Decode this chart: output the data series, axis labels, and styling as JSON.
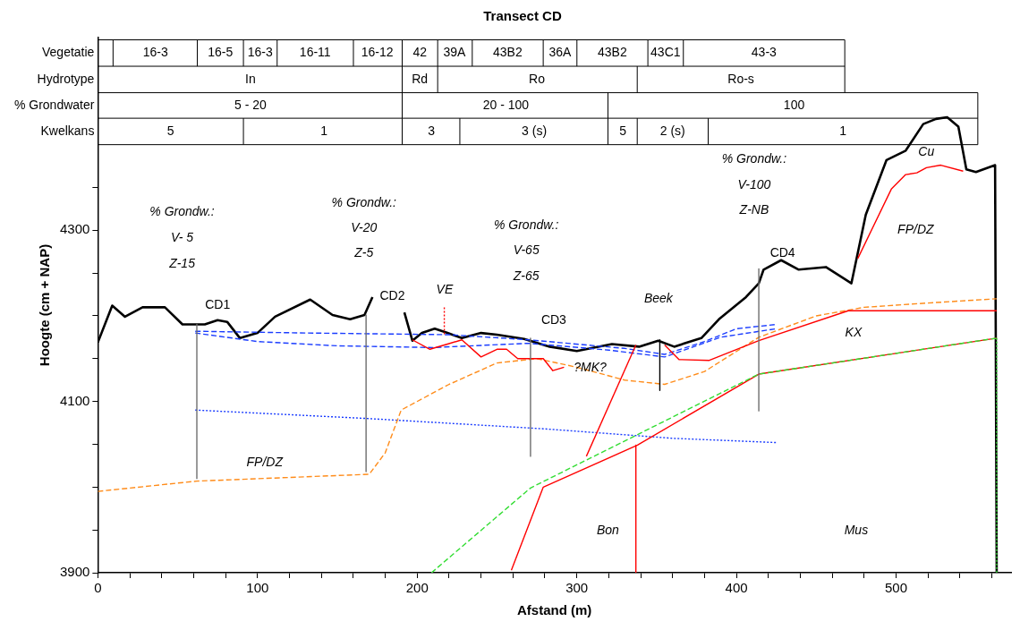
{
  "chart_data": {
    "type": "line",
    "title": "Transect CD",
    "xlabel": "Afstand (m)",
    "ylabel": "Hoogte (cm + NAP)",
    "xlim": [
      0,
      572
    ],
    "ylim": [
      3900,
      4525
    ],
    "xticks": [
      0,
      {
        "value": 20,
        "label": null
      },
      {
        "value": 40,
        "label": null
      },
      {
        "value": 60,
        "label": null
      },
      {
        "value": 80,
        "label": null
      },
      100,
      {
        "value": 120,
        "label": null
      },
      {
        "value": 140,
        "label": null
      },
      {
        "value": 160,
        "label": null
      },
      {
        "value": 180,
        "label": null
      },
      200,
      {
        "value": 220,
        "label": null
      },
      {
        "value": 240,
        "label": null
      },
      {
        "value": 260,
        "label": null
      },
      {
        "value": 280,
        "label": null
      },
      300,
      {
        "value": 320,
        "label": null
      },
      {
        "value": 340,
        "label": null
      },
      {
        "value": 360,
        "label": null
      },
      {
        "value": 380,
        "label": null
      },
      400,
      {
        "value": 420,
        "label": null
      },
      {
        "value": 440,
        "label": null
      },
      {
        "value": 460,
        "label": null
      },
      {
        "value": 480,
        "label": null
      },
      500,
      {
        "value": 520,
        "label": null
      },
      {
        "value": 540,
        "label": null
      },
      {
        "value": 560,
        "label": null
      }
    ],
    "yticks": [
      3900,
      {
        "value": 3950,
        "label": null
      },
      {
        "value": 4000,
        "label": null
      },
      {
        "value": 4050,
        "label": null
      },
      4100,
      {
        "value": 4150,
        "label": null
      },
      {
        "value": 4200,
        "label": null
      },
      {
        "value": 4250,
        "label": null
      },
      4300,
      {
        "value": 4350,
        "label": null
      }
    ],
    "grid": false,
    "legend": false,
    "marker": "none",
    "series": [
      {
        "color": "#000000",
        "line_style": "solid",
        "x": [
          0,
          9,
          17,
          28,
          42,
          53,
          67,
          75,
          81,
          89,
          100,
          111,
          133,
          147,
          158,
          167,
          172,
          182,
          192,
          197,
          203,
          211,
          219,
          228,
          240,
          250,
          267,
          283,
          300,
          322,
          339,
          351,
          361,
          378,
          389,
          406,
          414,
          417,
          428,
          439,
          456,
          467,
          472,
          481,
          494,
          506,
          517,
          525,
          532,
          539,
          544,
          550,
          562,
          563
        ],
        "values": [
          4169,
          4212,
          4199,
          4210,
          4210,
          4190,
          4190,
          4195,
          4193,
          4174,
          4180,
          4199,
          4219,
          4201,
          4196,
          4201,
          4222,
          null,
          4204,
          4171,
          4180,
          4185,
          4180,
          4174,
          4180,
          4178,
          4173,
          4164,
          4159,
          4167,
          4164,
          4171,
          4164,
          4174,
          4196,
          4222,
          4238,
          4254,
          4265,
          4254,
          4257,
          4244,
          4238,
          4318,
          4382,
          4393,
          4424,
          4430,
          4432,
          4421,
          4371,
          4368,
          4376,
          3900
        ]
      },
      {
        "color": "#1a3cff",
        "line_style": "dashed",
        "x": [
          61,
          130,
          220,
          270,
          330,
          355,
          380,
          400,
          425
        ],
        "values": [
          4182,
          4180,
          4178,
          4172,
          4162,
          4155,
          4170,
          4185,
          4190
        ]
      },
      {
        "color": "#1a3cff",
        "line_style": "dashed",
        "x": [
          61,
          100,
          150,
          210,
          270,
          320,
          355,
          390,
          425
        ],
        "values": [
          4180,
          4170,
          4165,
          4163,
          4168,
          4160,
          4152,
          4175,
          4185
        ]
      },
      {
        "color": "#1a3cff",
        "line_style": "dotted",
        "x": [
          61,
          170,
          280,
          360,
          425
        ],
        "values": [
          4090,
          4080,
          4068,
          4057,
          4052
        ]
      },
      {
        "color": "#ff8c1a",
        "line_style": "dashed",
        "x": [
          0,
          62,
          170,
          180,
          190,
          220,
          250,
          275,
          300,
          330,
          355,
          380,
          414,
          450,
          480,
          520,
          563
        ],
        "values": [
          3995,
          4007,
          4015,
          4040,
          4090,
          4120,
          4145,
          4150,
          4140,
          4125,
          4120,
          4135,
          4175,
          4200,
          4210,
          4215,
          4220
        ]
      },
      {
        "color": "#ff0000",
        "line_style": "solid",
        "x": [
          259,
          279,
          338,
          414,
          563
        ],
        "values": [
          3903,
          4000,
          4049,
          4132,
          4174
        ]
      },
      {
        "color": "#ff0000",
        "line_style": "solid",
        "x": [
          355,
          364,
          383,
          414,
          470,
          563
        ],
        "values": [
          4166,
          4149,
          4148,
          4171,
          4206,
          4206
        ]
      },
      {
        "color": "#ff0000",
        "line_style": "solid",
        "x": [
          306,
          337
        ],
        "values": [
          4036,
          4166
        ]
      },
      {
        "color": "#ff0000",
        "line_style": "solid",
        "x": [
          337,
          337
        ],
        "values": [
          4049,
          3900
        ]
      },
      {
        "color": "#ff0000",
        "line_style": "solid",
        "x": [
          197,
          208,
          219,
          228,
          240,
          250,
          256,
          263,
          279,
          285,
          292
        ],
        "values": [
          4172,
          4161,
          4167,
          4172,
          4152,
          4161,
          4161,
          4150,
          4150,
          4136,
          4140
        ]
      },
      {
        "color": "#ff0000",
        "line_style": "solid",
        "x": [
          476,
          497,
          506,
          513,
          519,
          528,
          542
        ],
        "values": [
          4267,
          4348,
          4365,
          4367,
          4373,
          4376,
          4369
        ]
      },
      {
        "color": "#ff0000",
        "line_style": "dotted",
        "x": [
          217,
          217
        ],
        "values": [
          4210,
          4178
        ]
      },
      {
        "color": "#33dd33",
        "line_style": "dashed",
        "x": [
          209,
          271,
          414,
          563
        ],
        "values": [
          3900,
          3999,
          4132,
          4174
        ]
      },
      {
        "color": "#6e6e6e",
        "line_style": "solid",
        "x": [
          62,
          62
        ],
        "values": [
          4190,
          4010
        ]
      },
      {
        "color": "#6e6e6e",
        "line_style": "solid",
        "x": [
          168,
          168
        ],
        "values": [
          4201,
          4018
        ]
      },
      {
        "color": "#6e6e6e",
        "line_style": "solid",
        "x": [
          271,
          271
        ],
        "values": [
          4174,
          4036
        ]
      },
      {
        "color": "#6e6e6e",
        "line_style": "solid",
        "x": [
          414,
          414
        ],
        "values": [
          4255,
          4089
        ]
      },
      {
        "color": "#000000",
        "line_style": "solid",
        "x": [
          352,
          352
        ],
        "values": [
          4172,
          4113
        ]
      },
      {
        "color": "#33dd33",
        "line_style": "dotted",
        "x": [
          563,
          563
        ],
        "values": [
          4174,
          3900
        ]
      }
    ],
    "annotations": [
      "Vegetatie",
      "Hydrotype",
      "% Grondwater",
      "Kwelkans",
      "16-3",
      "16-5",
      "16-3",
      "16-11",
      "16-12",
      "42",
      "39A",
      "43B2",
      "36A",
      "43B2",
      "43C1",
      "43-3",
      "In",
      "Rd",
      "Ro",
      "Ro-s",
      "5 - 20",
      "20 - 100",
      "100",
      "5",
      "1",
      "3",
      "3 (s)",
      "5",
      "2 (s)",
      "1",
      "% Grondw.:",
      "V- 5",
      "Z-15",
      "% Grondw.:",
      "V-20",
      "Z-5",
      "% Grondw.:",
      "V-65",
      "Z-65",
      "% Grondw.:",
      "V-100",
      "Z-NB",
      "CD1",
      "CD2",
      "CD3",
      "CD4",
      "VE",
      "Beek",
      "?MK?",
      "FP/DZ",
      "FP/DZ",
      "Cu",
      "KX",
      "Bon",
      "Mus"
    ]
  }
}
